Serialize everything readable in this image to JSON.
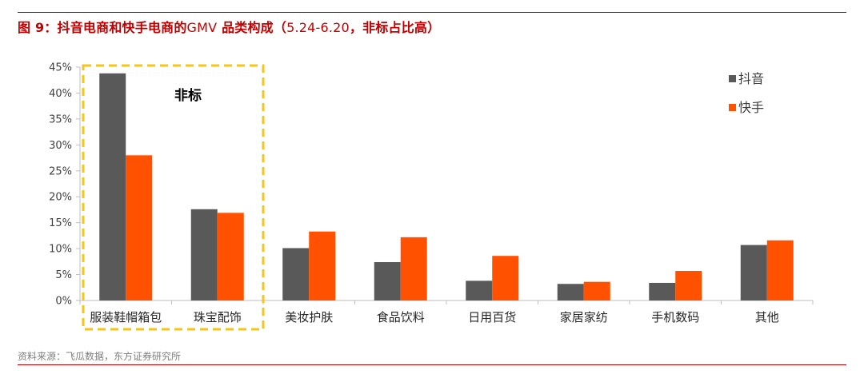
{
  "figure": {
    "label": "图 9：",
    "title_main": "抖音电商和快手电商的",
    "title_gmv": "GMV",
    "title_rest": "品类构成（",
    "title_range": "5.24-6.20",
    "title_end": "，非标占比高）"
  },
  "source": "资料来源：飞瓜数据，东方证券研究所",
  "annotation": "非标",
  "colors": {
    "douyin": "#595959",
    "kuaishou": "#ff5100",
    "highlight": "#f5c518",
    "title": "#c00000"
  },
  "chart_data": {
    "type": "bar",
    "title": "",
    "xlabel": "",
    "ylabel": "",
    "categories": [
      "服装鞋帽箱包",
      "珠宝配饰",
      "美妆护肤",
      "食品饮料",
      "日用百货",
      "家居家纺",
      "手机数码",
      "其他"
    ],
    "series": [
      {
        "name": "抖音",
        "values": [
          43.8,
          17.6,
          10.1,
          7.4,
          3.8,
          3.2,
          3.4,
          10.7
        ]
      },
      {
        "name": "快手",
        "values": [
          28.0,
          16.9,
          13.3,
          12.2,
          8.6,
          3.6,
          5.7,
          11.6
        ]
      }
    ],
    "ylim": [
      0,
      45
    ],
    "yticks": [
      "0%",
      "5%",
      "10%",
      "15%",
      "20%",
      "25%",
      "30%",
      "35%",
      "40%",
      "45%"
    ],
    "legend_position": "top-right",
    "grid": false
  }
}
